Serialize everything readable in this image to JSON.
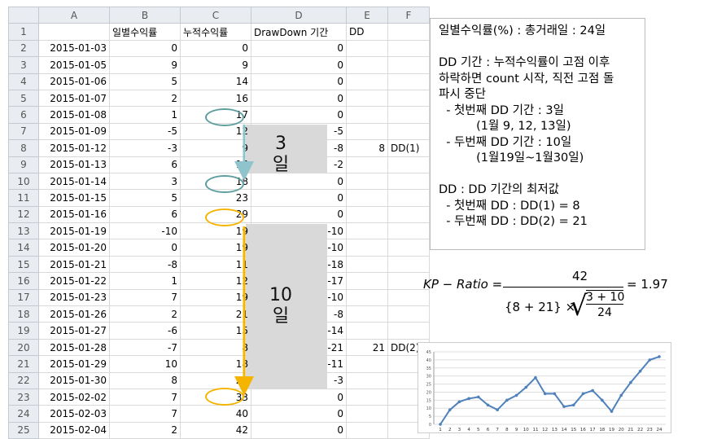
{
  "sheet": {
    "columns": [
      "A",
      "B",
      "C",
      "D",
      "E",
      "F"
    ],
    "header_row": {
      "row": "1",
      "A": "",
      "B": "일별수익률",
      "C": "누적수익률",
      "D": "DrawDown 기간",
      "E": "DD",
      "F": ""
    },
    "rows": [
      {
        "row": "2",
        "date": "2015-01-03",
        "daily": "0",
        "cum": "0",
        "dd_period": "0",
        "e": "",
        "f": ""
      },
      {
        "row": "3",
        "date": "2015-01-05",
        "daily": "9",
        "cum": "9",
        "dd_period": "0",
        "e": "",
        "f": ""
      },
      {
        "row": "4",
        "date": "2015-01-06",
        "daily": "5",
        "cum": "14",
        "dd_period": "0",
        "e": "",
        "f": ""
      },
      {
        "row": "5",
        "date": "2015-01-07",
        "daily": "2",
        "cum": "16",
        "dd_period": "0",
        "e": "",
        "f": ""
      },
      {
        "row": "6",
        "date": "2015-01-08",
        "daily": "1",
        "cum": "17",
        "dd_period": "0",
        "e": "",
        "f": ""
      },
      {
        "row": "7",
        "date": "2015-01-09",
        "daily": "-5",
        "cum": "12",
        "dd_period": "-5",
        "e": "",
        "f": ""
      },
      {
        "row": "8",
        "date": "2015-01-12",
        "daily": "-3",
        "cum": "9",
        "dd_period": "-8",
        "e": "8",
        "f": "DD(1)"
      },
      {
        "row": "9",
        "date": "2015-01-13",
        "daily": "6",
        "cum": "15",
        "dd_period": "-2",
        "e": "",
        "f": ""
      },
      {
        "row": "10",
        "date": "2015-01-14",
        "daily": "3",
        "cum": "18",
        "dd_period": "0",
        "e": "",
        "f": ""
      },
      {
        "row": "11",
        "date": "2015-01-15",
        "daily": "5",
        "cum": "23",
        "dd_period": "0",
        "e": "",
        "f": ""
      },
      {
        "row": "12",
        "date": "2015-01-16",
        "daily": "6",
        "cum": "29",
        "dd_period": "0",
        "e": "",
        "f": ""
      },
      {
        "row": "13",
        "date": "2015-01-19",
        "daily": "-10",
        "cum": "19",
        "dd_period": "-10",
        "e": "",
        "f": ""
      },
      {
        "row": "14",
        "date": "2015-01-20",
        "daily": "0",
        "cum": "19",
        "dd_period": "-10",
        "e": "",
        "f": ""
      },
      {
        "row": "15",
        "date": "2015-01-21",
        "daily": "-8",
        "cum": "11",
        "dd_period": "-18",
        "e": "",
        "f": ""
      },
      {
        "row": "16",
        "date": "2015-01-22",
        "daily": "1",
        "cum": "12",
        "dd_period": "-17",
        "e": "",
        "f": ""
      },
      {
        "row": "17",
        "date": "2015-01-23",
        "daily": "7",
        "cum": "19",
        "dd_period": "-10",
        "e": "",
        "f": ""
      },
      {
        "row": "18",
        "date": "2015-01-26",
        "daily": "2",
        "cum": "21",
        "dd_period": "-8",
        "e": "",
        "f": ""
      },
      {
        "row": "19",
        "date": "2015-01-27",
        "daily": "-6",
        "cum": "15",
        "dd_period": "-14",
        "e": "",
        "f": ""
      },
      {
        "row": "20",
        "date": "2015-01-28",
        "daily": "-7",
        "cum": "8",
        "dd_period": "-21",
        "e": "21",
        "f": "DD(2)"
      },
      {
        "row": "21",
        "date": "2015-01-29",
        "daily": "10",
        "cum": "18",
        "dd_period": "-11",
        "e": "",
        "f": ""
      },
      {
        "row": "22",
        "date": "2015-01-30",
        "daily": "8",
        "cum": "26",
        "dd_period": "-3",
        "e": "",
        "f": ""
      },
      {
        "row": "23",
        "date": "2015-02-02",
        "daily": "7",
        "cum": "33",
        "dd_period": "0",
        "e": "",
        "f": ""
      },
      {
        "row": "24",
        "date": "2015-02-03",
        "daily": "7",
        "cum": "40",
        "dd_period": "0",
        "e": "",
        "f": ""
      },
      {
        "row": "25",
        "date": "2015-02-04",
        "daily": "2",
        "cum": "42",
        "dd_period": "0",
        "e": "",
        "f": ""
      }
    ],
    "dd1_label": {
      "n": "3",
      "unit": "일"
    },
    "dd2_label": {
      "n": "10",
      "unit": "일"
    },
    "colors": {
      "teal": "#5f9ea0",
      "orange": "#f5b400",
      "shade": "#d9d9d9"
    }
  },
  "note": {
    "lines": [
      "일별수익률(%) : 총거래일 : 24일",
      "",
      "DD 기간 : 누적수익률이 고점 이후",
      "하락하면 count 시작, 직전 고점 돌",
      "파시 중단",
      "  - 첫번째 DD 기간 : 3일",
      "          (1월 9, 12, 13일)",
      "  - 두번째 DD 기간 : 10일",
      "          (1월19일~1월30일)",
      "",
      "DD : DD 기간의 최저값",
      "  - 첫번째 DD : DD(1) = 8",
      "  - 두번째 DD : DD(2) = 21"
    ]
  },
  "formula": {
    "lhs": "KP − Ratio =",
    "numerator": "42",
    "den_left": "{8 + 21} ×",
    "frac_num": "3 + 10",
    "frac_den": "24",
    "result": "= 1.97"
  },
  "chart_data": {
    "type": "line",
    "x": [
      1,
      2,
      3,
      4,
      5,
      6,
      7,
      8,
      9,
      10,
      11,
      12,
      13,
      14,
      15,
      16,
      17,
      18,
      19,
      20,
      21,
      22,
      23,
      24
    ],
    "values": [
      0,
      9,
      14,
      16,
      17,
      12,
      9,
      15,
      18,
      23,
      29,
      19,
      19,
      11,
      12,
      19,
      21,
      15,
      8,
      18,
      26,
      33,
      40,
      42
    ],
    "ylim": [
      0,
      45
    ],
    "yticks": [
      0,
      5,
      10,
      15,
      20,
      25,
      30,
      35,
      40,
      45
    ],
    "grid": true,
    "color": "#4f81bd"
  }
}
